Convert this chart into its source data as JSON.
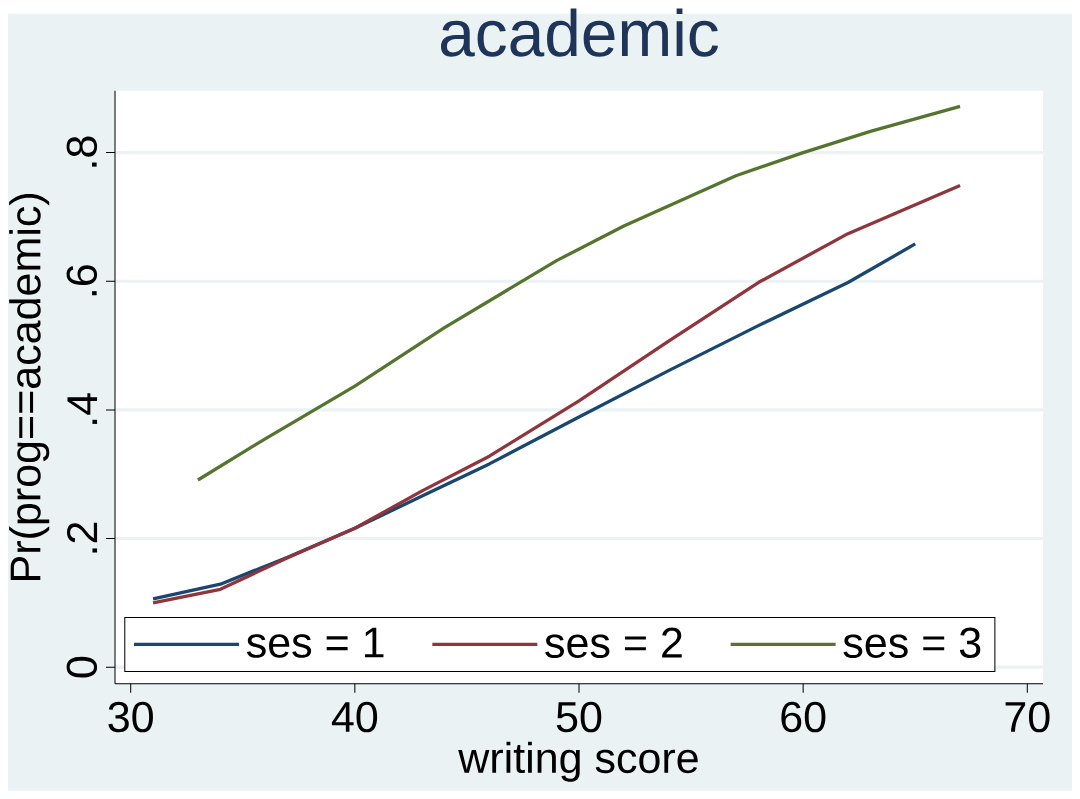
{
  "chart_data": {
    "type": "line",
    "title": "academic",
    "xlabel": "writing score",
    "ylabel": "Pr(prog==academic)",
    "xlim": [
      29.3,
      70.7
    ],
    "ylim": [
      -0.026,
      0.896
    ],
    "xticks": [
      30,
      40,
      50,
      60,
      70
    ],
    "yticks": [
      {
        "value": 0,
        "label": "0"
      },
      {
        "value": 0.2,
        "label": ".2"
      },
      {
        "value": 0.4,
        "label": ".4"
      },
      {
        "value": 0.6,
        "label": ".6"
      },
      {
        "value": 0.8,
        "label": ".8"
      }
    ],
    "grid": "y",
    "legend": "bottom left",
    "marker": "none",
    "line_style": "solid",
    "series": [
      {
        "name": "ses = 1",
        "color": "#1a476f",
        "x": [
          31,
          34,
          37,
          40,
          43,
          46,
          50,
          54,
          58,
          62,
          65
        ],
        "values": [
          0.106,
          0.129,
          0.171,
          0.216,
          0.266,
          0.316,
          0.389,
          0.461,
          0.531,
          0.598,
          0.658
        ]
      },
      {
        "name": "ses = 2",
        "color": "#90353b",
        "x": [
          31,
          34,
          37,
          40,
          43,
          46,
          50,
          54,
          58,
          62,
          67
        ],
        "values": [
          0.1,
          0.121,
          0.17,
          0.216,
          0.274,
          0.328,
          0.414,
          0.507,
          0.598,
          0.674,
          0.749
        ]
      },
      {
        "name": "ses = 3",
        "color": "#55752f",
        "x": [
          33,
          36,
          40,
          44,
          49,
          52,
          57,
          60,
          63,
          67
        ],
        "values": [
          0.291,
          0.355,
          0.437,
          0.528,
          0.632,
          0.686,
          0.764,
          0.8,
          0.833,
          0.872
        ]
      }
    ]
  }
}
